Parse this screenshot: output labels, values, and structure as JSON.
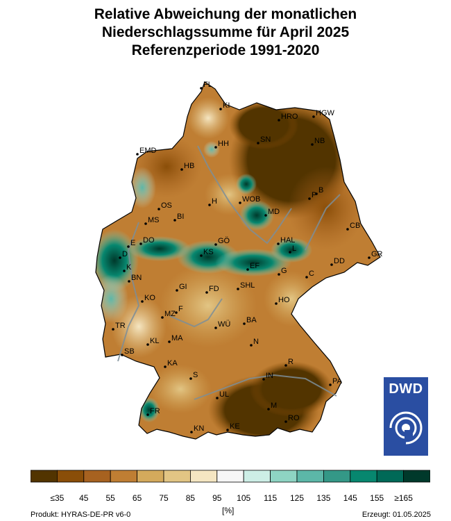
{
  "title": {
    "line1": "Relative Abweichung der monatlichen",
    "line2": "Niederschlagssumme für April 2025",
    "line3": "Referenzperiode 1991-2020"
  },
  "cities": [
    {
      "code": "FL"
    },
    {
      "code": "KI"
    },
    {
      "code": "HRO"
    },
    {
      "code": "HGW"
    },
    {
      "code": "SN"
    },
    {
      "code": "NB"
    },
    {
      "code": "HH"
    },
    {
      "code": "EMD"
    },
    {
      "code": "HB"
    },
    {
      "code": "B"
    },
    {
      "code": "P"
    },
    {
      "code": "OS"
    },
    {
      "code": "H"
    },
    {
      "code": "WOB"
    },
    {
      "code": "MD"
    },
    {
      "code": "MS"
    },
    {
      "code": "BI"
    },
    {
      "code": "CB"
    },
    {
      "code": "E"
    },
    {
      "code": "DO"
    },
    {
      "code": "GÖ"
    },
    {
      "code": "HAL"
    },
    {
      "code": "L"
    },
    {
      "code": "D"
    },
    {
      "code": "KS"
    },
    {
      "code": "EF"
    },
    {
      "code": "G"
    },
    {
      "code": "DD"
    },
    {
      "code": "GR"
    },
    {
      "code": "K"
    },
    {
      "code": "BN"
    },
    {
      "code": "GI"
    },
    {
      "code": "FD"
    },
    {
      "code": "SHL"
    },
    {
      "code": "C"
    },
    {
      "code": "KO"
    },
    {
      "code": "F"
    },
    {
      "code": "HO"
    },
    {
      "code": "MZ"
    },
    {
      "code": "WÜ"
    },
    {
      "code": "BA"
    },
    {
      "code": "TR"
    },
    {
      "code": "KL"
    },
    {
      "code": "MA"
    },
    {
      "code": "N"
    },
    {
      "code": "SB"
    },
    {
      "code": "KA"
    },
    {
      "code": "R"
    },
    {
      "code": "S"
    },
    {
      "code": "IN"
    },
    {
      "code": "PA"
    },
    {
      "code": "UL"
    },
    {
      "code": "M"
    },
    {
      "code": "FR"
    },
    {
      "code": "KN"
    },
    {
      "code": "KE"
    },
    {
      "code": "RO"
    }
  ],
  "legend": {
    "colors": [
      "#523400",
      "#8a4e08",
      "#a76220",
      "#bf7e33",
      "#d4aa5c",
      "#e2c584",
      "#f5e6c2",
      "#f6f6f6",
      "#cdeee6",
      "#8ed4c3",
      "#5cb7a8",
      "#349887",
      "#07876f",
      "#006957",
      "#00392b"
    ],
    "tick_labels": [
      "≤35",
      "45",
      "55",
      "65",
      "75",
      "85",
      "95",
      "105",
      "115",
      "125",
      "135",
      "145",
      "155",
      "≥165"
    ],
    "unit": "[%]"
  },
  "footer": {
    "product": "Produkt: HYRAS-DE-PR v6-0",
    "created": "Erzeugt: 01.05.2025"
  },
  "logo": {
    "text": "DWD",
    "icon": "dwd-spiral-icon",
    "color": "#2a4ea2"
  }
}
